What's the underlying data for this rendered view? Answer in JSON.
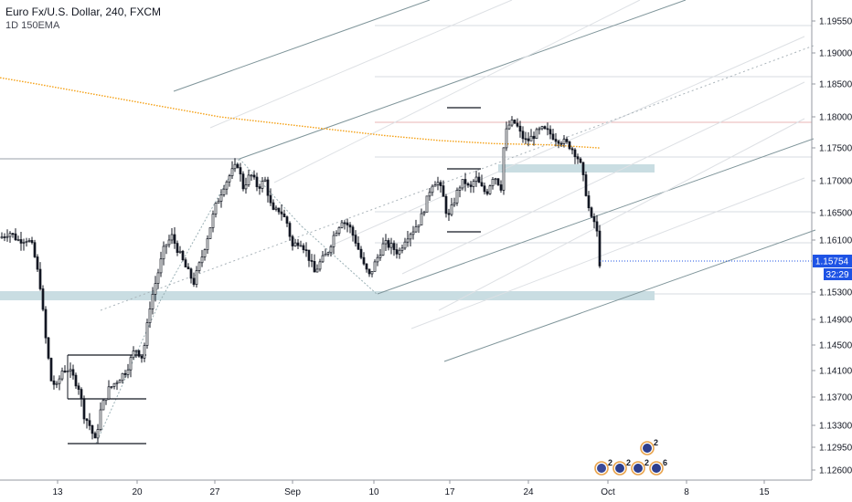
{
  "header": {
    "title": "Euro Fx/U.S. Dollar, 240, FXCM",
    "indicator": "1D 150EMA"
  },
  "colors": {
    "candle": "#131722",
    "ema": "#f5a623",
    "zone": "#c9dde2",
    "trend": "#8fa8ad",
    "pitchfork": "#7f959a",
    "price_tag": "#1e53e5",
    "grid_ref": "#c8ccd4"
  },
  "chart_data": {
    "type": "candlestick",
    "title": "Euro Fx/U.S. Dollar, 240, FXCM",
    "indicator": "1D 150EMA",
    "x_tick_labels": [
      "13",
      "20",
      "27",
      "Sep",
      "10",
      "17",
      "24",
      "Oct",
      "8",
      "15"
    ],
    "y_tick_labels": [
      "1.19550",
      "1.19000",
      "1.18500",
      "1.18000",
      "1.17500",
      "1.17000",
      "1.16500",
      "1.16100",
      "1.15300",
      "1.14900",
      "1.14500",
      "1.14100",
      "1.13700",
      "1.13300",
      "1.12950",
      "1.12600"
    ],
    "y_ticks": [
      1.1955,
      1.19,
      1.185,
      1.18,
      1.175,
      1.17,
      1.165,
      1.161,
      1.153,
      1.149,
      1.145,
      1.141,
      1.137,
      1.133,
      1.1295,
      1.126
    ],
    "ylim": [
      1.1245,
      1.1975
    ],
    "last_price": "1.15754",
    "countdown": "32:29",
    "close_path": [
      [
        0,
        1.1613
      ],
      [
        10,
        1.1622
      ],
      [
        20,
        1.161
      ],
      [
        30,
        1.1612
      ],
      [
        36,
        1.1598
      ],
      [
        44,
        1.154
      ],
      [
        50,
        1.146
      ],
      [
        56,
        1.1395
      ],
      [
        62,
        1.1385
      ],
      [
        68,
        1.141
      ],
      [
        74,
        1.1412
      ],
      [
        80,
        1.14
      ],
      [
        86,
        1.1385
      ],
      [
        92,
        1.1345
      ],
      [
        98,
        1.133
      ],
      [
        104,
        1.1305
      ],
      [
        110,
        1.135
      ],
      [
        118,
        1.138
      ],
      [
        128,
        1.1395
      ],
      [
        138,
        1.141
      ],
      [
        148,
        1.1445
      ],
      [
        156,
        1.143
      ],
      [
        164,
        1.151
      ],
      [
        172,
        1.1555
      ],
      [
        180,
        1.16
      ],
      [
        188,
        1.1615
      ],
      [
        196,
        1.159
      ],
      [
        204,
        1.1565
      ],
      [
        212,
        1.1545
      ],
      [
        220,
        1.158
      ],
      [
        228,
        1.162
      ],
      [
        236,
        1.166
      ],
      [
        244,
        1.169
      ],
      [
        252,
        1.171
      ],
      [
        260,
        1.1725
      ],
      [
        266,
        1.169
      ],
      [
        274,
        1.171
      ],
      [
        282,
        1.169
      ],
      [
        290,
        1.17
      ],
      [
        298,
        1.165
      ],
      [
        306,
        1.1655
      ],
      [
        314,
        1.1635
      ],
      [
        320,
        1.16
      ],
      [
        328,
        1.161
      ],
      [
        336,
        1.159
      ],
      [
        344,
        1.156
      ],
      [
        350,
        1.1575
      ],
      [
        358,
        1.159
      ],
      [
        366,
        1.162
      ],
      [
        374,
        1.164
      ],
      [
        382,
        1.163
      ],
      [
        390,
        1.1605
      ],
      [
        398,
        1.157
      ],
      [
        404,
        1.1555
      ],
      [
        412,
        1.158
      ],
      [
        420,
        1.1605
      ],
      [
        428,
        1.16
      ],
      [
        436,
        1.159
      ],
      [
        444,
        1.1615
      ],
      [
        452,
        1.1625
      ],
      [
        460,
        1.164
      ],
      [
        466,
        1.1665
      ],
      [
        472,
        1.1695
      ],
      [
        478,
        1.17
      ],
      [
        484,
        1.168
      ],
      [
        490,
        1.164
      ],
      [
        496,
        1.1665
      ],
      [
        502,
        1.169
      ],
      [
        508,
        1.17
      ],
      [
        514,
        1.1685
      ],
      [
        520,
        1.1705
      ],
      [
        526,
        1.169
      ],
      [
        532,
        1.168
      ],
      [
        540,
        1.171
      ],
      [
        548,
        1.169
      ],
      [
        552,
        1.177
      ],
      [
        558,
        1.179
      ],
      [
        564,
        1.179
      ],
      [
        570,
        1.177
      ],
      [
        576,
        1.176
      ],
      [
        584,
        1.177
      ],
      [
        592,
        1.178
      ],
      [
        600,
        1.1775
      ],
      [
        608,
        1.1765
      ],
      [
        616,
        1.176
      ],
      [
        622,
        1.1755
      ],
      [
        628,
        1.1745
      ],
      [
        634,
        1.173
      ],
      [
        640,
        1.169
      ],
      [
        646,
        1.164
      ],
      [
        652,
        1.1635
      ],
      [
        656,
        1.1575
      ]
    ]
  },
  "events": [
    {
      "icon": "flag-icon",
      "count": "2"
    },
    {
      "icon": "calendar-icon",
      "count": "2"
    },
    {
      "icon": "calendar-icon",
      "count": "2"
    },
    {
      "icon": "calendar-icon",
      "count": "6"
    },
    {
      "icon": "calendar-icon",
      "count": "2"
    }
  ]
}
